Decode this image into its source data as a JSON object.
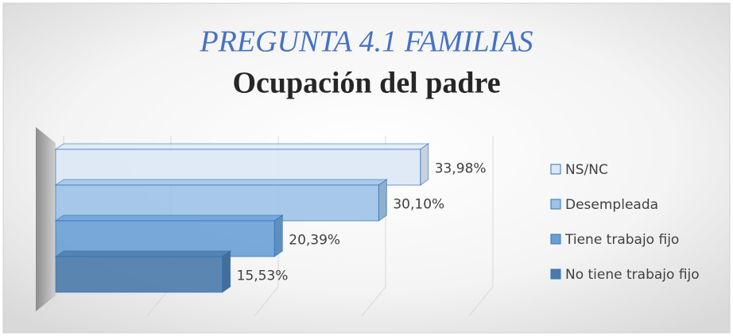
{
  "chart_data": {
    "type": "bar3d_horizontal",
    "title": "PREGUNTA 4.1 FAMILIAS",
    "subtitle": "Ocupación del padre",
    "categories": [
      "NS/NC",
      "Desempleada",
      "Tiene trabajo fijo",
      "No tiene trabajo fijo"
    ],
    "values": [
      33.98,
      30.1,
      20.39,
      15.53
    ],
    "value_labels": [
      "33,98%",
      "30,10%",
      "20,39%",
      "15,53%"
    ],
    "colors": [
      "#dde8f6",
      "#9fc2e7",
      "#6a9fd6",
      "#4a7aaa"
    ],
    "xlim": [
      0,
      40
    ],
    "xticks": [
      0,
      10,
      20,
      30,
      40
    ],
    "grid": true
  }
}
